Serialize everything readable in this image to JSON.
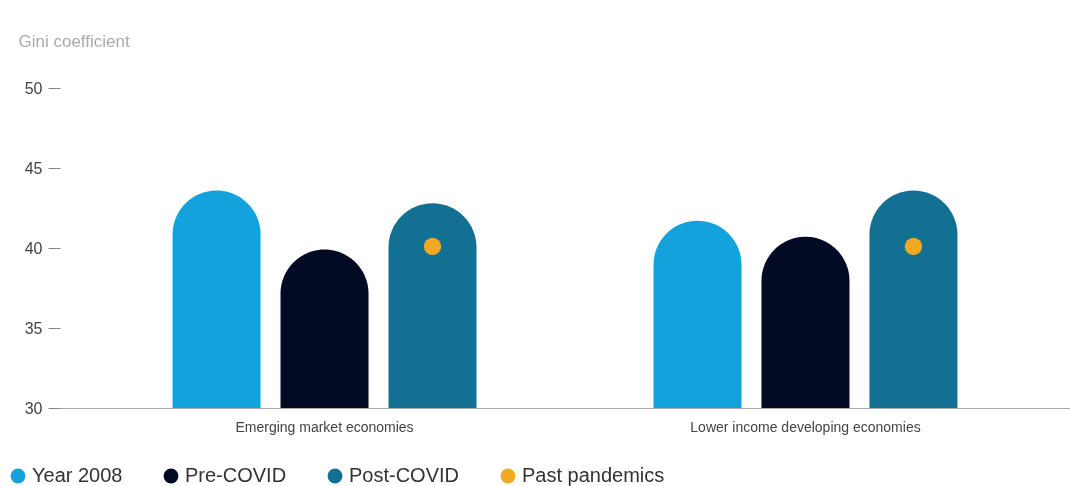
{
  "chart_data": {
    "type": "bar",
    "ylabel": "Gini coefficient",
    "categories": [
      "Emerging market economies",
      "Lower income developing economies"
    ],
    "series": [
      {
        "name": "Year 2008",
        "color": "#13a3dc",
        "values": [
          43.6,
          41.7
        ]
      },
      {
        "name": "Pre-COVID",
        "color": "#020a24",
        "values": [
          39.9,
          40.7
        ]
      },
      {
        "name": "Post-COVID",
        "color": "#127092",
        "values": [
          42.8,
          43.6
        ]
      },
      {
        "name": "Past pandemics",
        "color": "#f2a922",
        "type": "scatter",
        "x": [
          "Emerging market economies",
          "Lower income developing economies"
        ],
        "values": [
          40.1,
          40.1
        ]
      }
    ],
    "ylim": [
      30,
      50
    ],
    "yticks": [
      30,
      35,
      40,
      45,
      50
    ],
    "legend": "bottom left",
    "marker": "circle"
  }
}
